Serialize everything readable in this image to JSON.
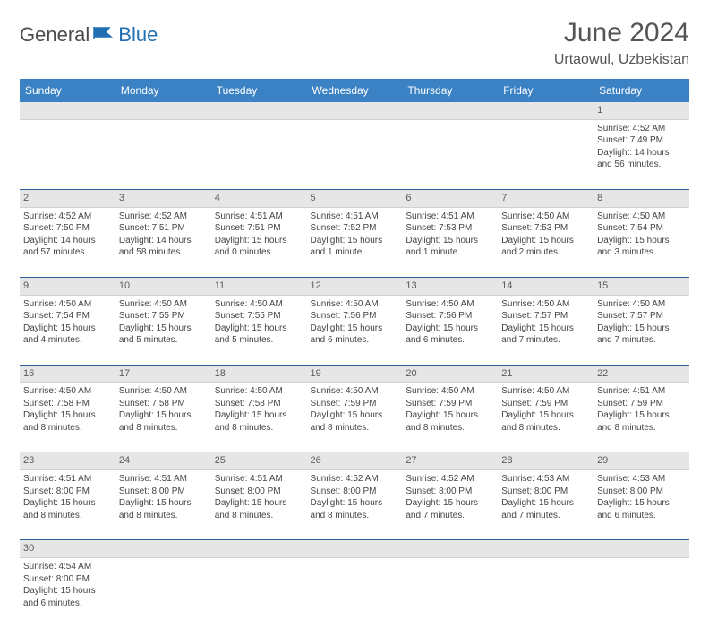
{
  "brand": {
    "text1": "General",
    "text2": "Blue",
    "color1": "#4a4a4a",
    "color2": "#1f6fb2"
  },
  "title": "June 2024",
  "location": "Urtaowul, Uzbekistan",
  "colors": {
    "header_bg": "#3b82c4",
    "header_text": "#ffffff",
    "daynum_bg": "#e6e6e6",
    "cell_border": "#2b5f95",
    "text": "#444444"
  },
  "day_headers": [
    "Sunday",
    "Monday",
    "Tuesday",
    "Wednesday",
    "Thursday",
    "Friday",
    "Saturday"
  ],
  "weeks": [
    [
      null,
      null,
      null,
      null,
      null,
      null,
      {
        "n": "1",
        "sr": "Sunrise: 4:52 AM",
        "ss": "Sunset: 7:49 PM",
        "dl": "Daylight: 14 hours and 56 minutes."
      }
    ],
    [
      {
        "n": "2",
        "sr": "Sunrise: 4:52 AM",
        "ss": "Sunset: 7:50 PM",
        "dl": "Daylight: 14 hours and 57 minutes."
      },
      {
        "n": "3",
        "sr": "Sunrise: 4:52 AM",
        "ss": "Sunset: 7:51 PM",
        "dl": "Daylight: 14 hours and 58 minutes."
      },
      {
        "n": "4",
        "sr": "Sunrise: 4:51 AM",
        "ss": "Sunset: 7:51 PM",
        "dl": "Daylight: 15 hours and 0 minutes."
      },
      {
        "n": "5",
        "sr": "Sunrise: 4:51 AM",
        "ss": "Sunset: 7:52 PM",
        "dl": "Daylight: 15 hours and 1 minute."
      },
      {
        "n": "6",
        "sr": "Sunrise: 4:51 AM",
        "ss": "Sunset: 7:53 PM",
        "dl": "Daylight: 15 hours and 1 minute."
      },
      {
        "n": "7",
        "sr": "Sunrise: 4:50 AM",
        "ss": "Sunset: 7:53 PM",
        "dl": "Daylight: 15 hours and 2 minutes."
      },
      {
        "n": "8",
        "sr": "Sunrise: 4:50 AM",
        "ss": "Sunset: 7:54 PM",
        "dl": "Daylight: 15 hours and 3 minutes."
      }
    ],
    [
      {
        "n": "9",
        "sr": "Sunrise: 4:50 AM",
        "ss": "Sunset: 7:54 PM",
        "dl": "Daylight: 15 hours and 4 minutes."
      },
      {
        "n": "10",
        "sr": "Sunrise: 4:50 AM",
        "ss": "Sunset: 7:55 PM",
        "dl": "Daylight: 15 hours and 5 minutes."
      },
      {
        "n": "11",
        "sr": "Sunrise: 4:50 AM",
        "ss": "Sunset: 7:55 PM",
        "dl": "Daylight: 15 hours and 5 minutes."
      },
      {
        "n": "12",
        "sr": "Sunrise: 4:50 AM",
        "ss": "Sunset: 7:56 PM",
        "dl": "Daylight: 15 hours and 6 minutes."
      },
      {
        "n": "13",
        "sr": "Sunrise: 4:50 AM",
        "ss": "Sunset: 7:56 PM",
        "dl": "Daylight: 15 hours and 6 minutes."
      },
      {
        "n": "14",
        "sr": "Sunrise: 4:50 AM",
        "ss": "Sunset: 7:57 PM",
        "dl": "Daylight: 15 hours and 7 minutes."
      },
      {
        "n": "15",
        "sr": "Sunrise: 4:50 AM",
        "ss": "Sunset: 7:57 PM",
        "dl": "Daylight: 15 hours and 7 minutes."
      }
    ],
    [
      {
        "n": "16",
        "sr": "Sunrise: 4:50 AM",
        "ss": "Sunset: 7:58 PM",
        "dl": "Daylight: 15 hours and 8 minutes."
      },
      {
        "n": "17",
        "sr": "Sunrise: 4:50 AM",
        "ss": "Sunset: 7:58 PM",
        "dl": "Daylight: 15 hours and 8 minutes."
      },
      {
        "n": "18",
        "sr": "Sunrise: 4:50 AM",
        "ss": "Sunset: 7:58 PM",
        "dl": "Daylight: 15 hours and 8 minutes."
      },
      {
        "n": "19",
        "sr": "Sunrise: 4:50 AM",
        "ss": "Sunset: 7:59 PM",
        "dl": "Daylight: 15 hours and 8 minutes."
      },
      {
        "n": "20",
        "sr": "Sunrise: 4:50 AM",
        "ss": "Sunset: 7:59 PM",
        "dl": "Daylight: 15 hours and 8 minutes."
      },
      {
        "n": "21",
        "sr": "Sunrise: 4:50 AM",
        "ss": "Sunset: 7:59 PM",
        "dl": "Daylight: 15 hours and 8 minutes."
      },
      {
        "n": "22",
        "sr": "Sunrise: 4:51 AM",
        "ss": "Sunset: 7:59 PM",
        "dl": "Daylight: 15 hours and 8 minutes."
      }
    ],
    [
      {
        "n": "23",
        "sr": "Sunrise: 4:51 AM",
        "ss": "Sunset: 8:00 PM",
        "dl": "Daylight: 15 hours and 8 minutes."
      },
      {
        "n": "24",
        "sr": "Sunrise: 4:51 AM",
        "ss": "Sunset: 8:00 PM",
        "dl": "Daylight: 15 hours and 8 minutes."
      },
      {
        "n": "25",
        "sr": "Sunrise: 4:51 AM",
        "ss": "Sunset: 8:00 PM",
        "dl": "Daylight: 15 hours and 8 minutes."
      },
      {
        "n": "26",
        "sr": "Sunrise: 4:52 AM",
        "ss": "Sunset: 8:00 PM",
        "dl": "Daylight: 15 hours and 8 minutes."
      },
      {
        "n": "27",
        "sr": "Sunrise: 4:52 AM",
        "ss": "Sunset: 8:00 PM",
        "dl": "Daylight: 15 hours and 7 minutes."
      },
      {
        "n": "28",
        "sr": "Sunrise: 4:53 AM",
        "ss": "Sunset: 8:00 PM",
        "dl": "Daylight: 15 hours and 7 minutes."
      },
      {
        "n": "29",
        "sr": "Sunrise: 4:53 AM",
        "ss": "Sunset: 8:00 PM",
        "dl": "Daylight: 15 hours and 6 minutes."
      }
    ],
    [
      {
        "n": "30",
        "sr": "Sunrise: 4:54 AM",
        "ss": "Sunset: 8:00 PM",
        "dl": "Daylight: 15 hours and 6 minutes."
      },
      null,
      null,
      null,
      null,
      null,
      null
    ]
  ]
}
